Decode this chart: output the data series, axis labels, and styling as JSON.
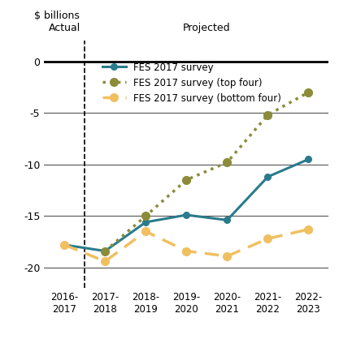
{
  "ylabel": "$ billions",
  "x_labels": [
    "2016-\n2017",
    "2017-\n2018",
    "2018-\n2019",
    "2019-\n2020",
    "2020-\n2021",
    "2021-\n2022",
    "2022-\n2023"
  ],
  "x_values": [
    0,
    1,
    2,
    3,
    4,
    5,
    6
  ],
  "fes_survey": [
    -17.8,
    -18.4,
    -15.6,
    -14.9,
    -15.4,
    -11.2,
    -9.5
  ],
  "top_four": [
    null,
    -18.4,
    -15.0,
    -11.5,
    -9.8,
    -5.2,
    -3.0
  ],
  "bottom_four": [
    -17.8,
    -19.4,
    -16.5,
    -18.4,
    -18.9,
    -17.2,
    -16.3
  ],
  "fes_color": "#2A7B8C",
  "top_color": "#8B8B3A",
  "bottom_color": "#F0C060",
  "actual_label": "Actual",
  "projected_label": "Projected",
  "vline_x": 0.5,
  "ylim": [
    -22,
    2
  ],
  "yticks": [
    0,
    -5,
    -10,
    -15,
    -20
  ],
  "legend_labels": [
    "FES 2017 survey",
    "FES 2017 survey (top four)",
    "FES 2017 survey (bottom four)"
  ]
}
